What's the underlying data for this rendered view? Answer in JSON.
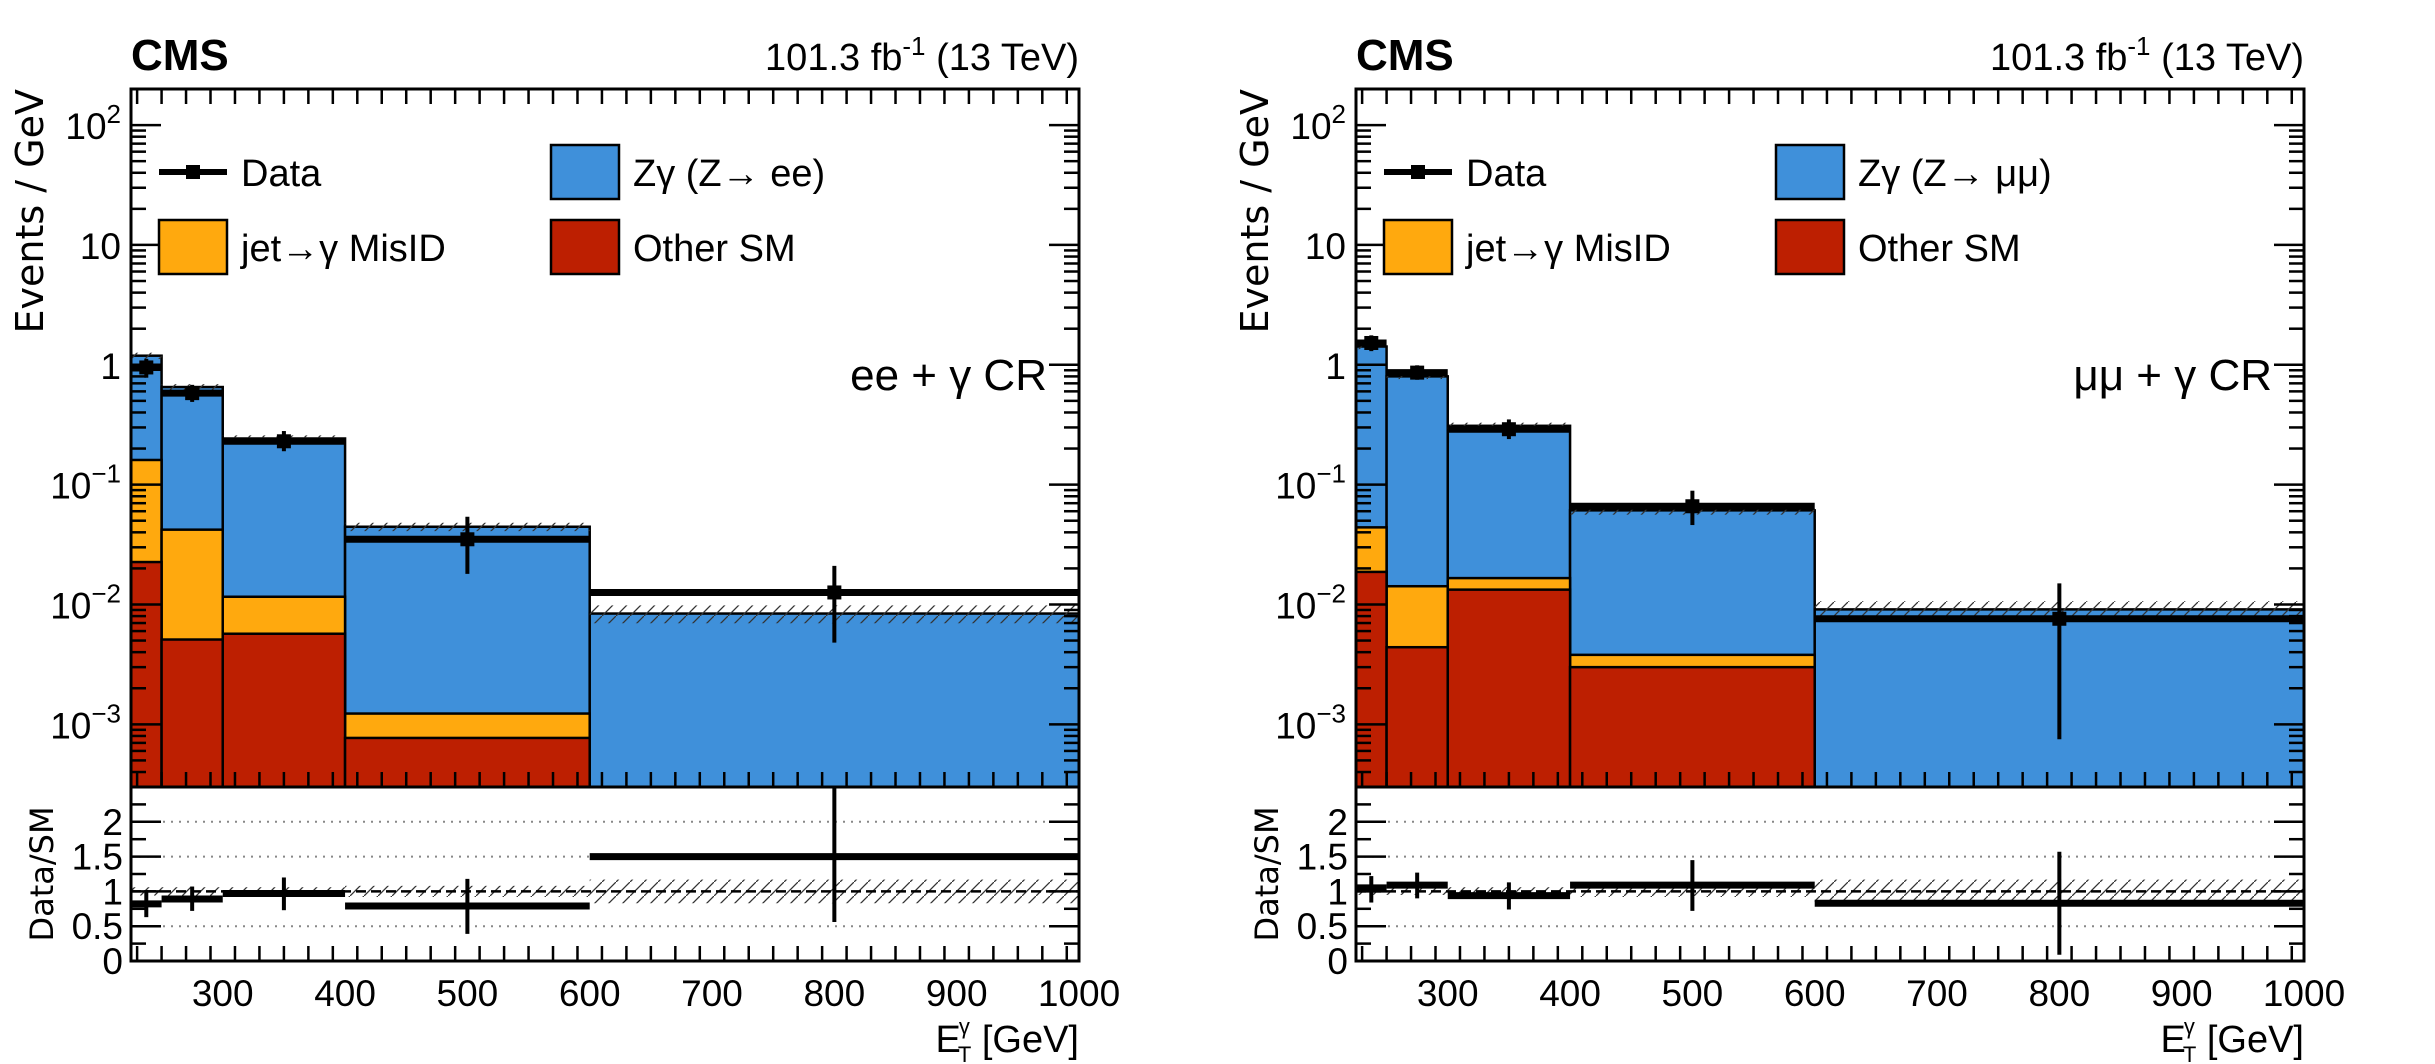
{
  "colors": {
    "zgamma": "#3f90da",
    "misid": "#ffa90e",
    "other": "#bd1f01",
    "data": "#000000"
  },
  "chart_data": [
    {
      "type": "bar",
      "stacked": true,
      "title_left": "CMS",
      "title_right": "101.3 fb",
      "title_right_sup": "-1",
      "title_right_tail": " (13 TeV)",
      "region_label": "ee + γ CR",
      "xlabel": "E",
      "xlabel_sup": "γ",
      "xlabel_sub": "T",
      "xlabel_unit": " [GeV]",
      "ylabel": "Events / GeV",
      "yscale": "log",
      "ylim": [
        0.0003,
        200
      ],
      "xlim": [
        225,
        1000
      ],
      "x_ticks": [
        300,
        400,
        500,
        600,
        700,
        800,
        900,
        1000
      ],
      "y_ticks": [
        {
          "value": 0.001,
          "base": "10",
          "exp": "−3"
        },
        {
          "value": 0.01,
          "base": "10",
          "exp": "−2"
        },
        {
          "value": 0.1,
          "base": "10",
          "exp": "−1"
        },
        {
          "value": 1,
          "base": "1",
          "exp": ""
        },
        {
          "value": 10,
          "base": "10",
          "exp": ""
        },
        {
          "value": 100,
          "base": "10",
          "exp": "2"
        }
      ],
      "bin_edges": [
        225,
        250,
        300,
        400,
        600,
        1000
      ],
      "series": [
        {
          "name": "Other SM",
          "key": "other",
          "values": [
            0.0226,
            0.0051,
            0.0057,
            0.00077,
            0.0
          ]
        },
        {
          "name": "jet→γ MisID",
          "key": "misid",
          "values": [
            0.138,
            0.037,
            0.0059,
            0.00046,
            0.0
          ]
        },
        {
          "name": "Zγ (Z→ ee)",
          "key": "zgamma",
          "values": [
            1.03,
            0.61,
            0.231,
            0.0433,
            0.0084
          ]
        }
      ],
      "total_sm": [
        1.19,
        0.65,
        0.243,
        0.0445,
        0.0084
      ],
      "data": {
        "name": "Data",
        "x": [
          237.5,
          275,
          350,
          500,
          800
        ],
        "y": [
          0.95,
          0.58,
          0.23,
          0.035,
          0.0126
        ],
        "y_err_low": [
          0.78,
          0.49,
          0.19,
          0.018,
          0.0048
        ],
        "y_err_high": [
          1.12,
          0.68,
          0.28,
          0.054,
          0.021
        ]
      },
      "ratio": {
        "ylabel": "Data/SM",
        "ylim": [
          0,
          2.5
        ],
        "y_ticks": [
          "0",
          "0.5",
          "1",
          "1.5",
          "2"
        ],
        "y_tick_values": [
          0,
          0.5,
          1,
          1.5,
          2
        ],
        "gridlines": [
          0.5,
          1.5,
          2
        ],
        "reference_line": 1,
        "values": [
          0.82,
          0.89,
          0.97,
          0.79,
          1.5
        ],
        "err_low": [
          0.63,
          0.72,
          0.73,
          0.39,
          0.56
        ],
        "err_high": [
          1.02,
          1.07,
          1.2,
          1.18,
          2.5
        ],
        "band_halfwidth": [
          0.06,
          0.06,
          0.06,
          0.08,
          0.17
        ]
      },
      "legend": {
        "placement": "top-left",
        "entries": [
          {
            "label": "Data",
            "key": "data"
          },
          {
            "label": "Zγ (Z→ ee)",
            "key": "zgamma"
          },
          {
            "label": "jet→γ MisID",
            "key": "misid"
          },
          {
            "label": "Other SM",
            "key": "other"
          }
        ]
      }
    },
    {
      "type": "bar",
      "stacked": true,
      "title_left": "CMS",
      "title_right": "101.3 fb",
      "title_right_sup": "-1",
      "title_right_tail": " (13 TeV)",
      "region_label": "μμ + γ CR",
      "xlabel": "E",
      "xlabel_sup": "γ",
      "xlabel_sub": "T",
      "xlabel_unit": " [GeV]",
      "ylabel": "Events / GeV",
      "yscale": "log",
      "ylim": [
        0.0003,
        200
      ],
      "xlim": [
        225,
        1000
      ],
      "x_ticks": [
        300,
        400,
        500,
        600,
        700,
        800,
        900,
        1000
      ],
      "y_ticks": [
        {
          "value": 0.001,
          "base": "10",
          "exp": "−3"
        },
        {
          "value": 0.01,
          "base": "10",
          "exp": "−2"
        },
        {
          "value": 0.1,
          "base": "10",
          "exp": "−1"
        },
        {
          "value": 1,
          "base": "1",
          "exp": ""
        },
        {
          "value": 10,
          "base": "10",
          "exp": ""
        },
        {
          "value": 100,
          "base": "10",
          "exp": "2"
        }
      ],
      "bin_edges": [
        225,
        250,
        300,
        400,
        600,
        1000
      ],
      "series": [
        {
          "name": "Other SM",
          "key": "other",
          "values": [
            0.0187,
            0.0044,
            0.0133,
            0.003,
            0.0
          ]
        },
        {
          "name": "jet→γ MisID",
          "key": "misid",
          "values": [
            0.0253,
            0.0098,
            0.0033,
            0.0008,
            0.0
          ]
        },
        {
          "name": "Zγ (Z→ μμ)",
          "key": "zgamma",
          "values": [
            1.376,
            0.786,
            0.293,
            0.0572,
            0.0091
          ]
        }
      ],
      "total_sm": [
        1.42,
        0.8,
        0.31,
        0.061,
        0.0091
      ],
      "data": {
        "name": "Data",
        "x": [
          237.5,
          275,
          350,
          500,
          800
        ],
        "y": [
          1.52,
          0.86,
          0.29,
          0.066,
          0.0076
        ],
        "y_err_low": [
          1.3,
          0.75,
          0.24,
          0.046,
          0.00075
        ],
        "y_err_high": [
          1.76,
          0.99,
          0.35,
          0.089,
          0.015
        ]
      },
      "ratio": {
        "ylabel": "Data/SM",
        "ylim": [
          0,
          2.5
        ],
        "y_ticks": [
          "0",
          "0.5",
          "1",
          "1.5",
          "2"
        ],
        "y_tick_values": [
          0,
          0.5,
          1,
          1.5,
          2
        ],
        "gridlines": [
          0.5,
          1.5,
          2
        ],
        "reference_line": 1,
        "values": [
          1.05,
          1.09,
          0.94,
          1.09,
          0.83
        ],
        "err_low": [
          0.84,
          0.9,
          0.74,
          0.72,
          0.09
        ],
        "err_high": [
          1.22,
          1.27,
          1.13,
          1.45,
          1.57
        ],
        "band_halfwidth": [
          0.05,
          0.05,
          0.06,
          0.08,
          0.17
        ]
      },
      "legend": {
        "placement": "top-left",
        "entries": [
          {
            "label": "Data",
            "key": "data"
          },
          {
            "label": "Zγ (Z→ μμ)",
            "key": "zgamma"
          },
          {
            "label": "jet→γ MisID",
            "key": "misid"
          },
          {
            "label": "Other SM",
            "key": "other"
          }
        ]
      }
    }
  ]
}
